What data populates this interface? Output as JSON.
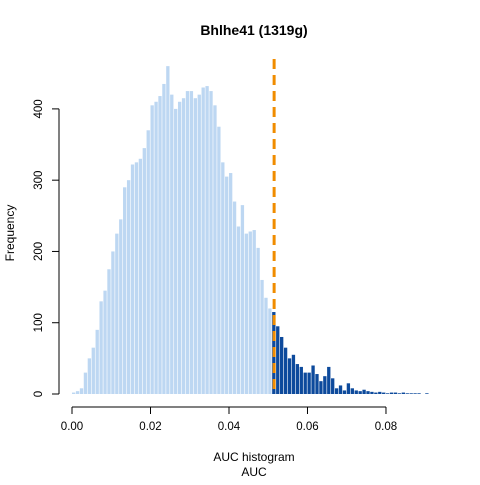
{
  "chart_data": {
    "type": "histogram",
    "title": "Bhlhe41 (1319g)",
    "xlabel_line1": "AUC histogram",
    "xlabel_line2": "AUC",
    "ylabel": "Frequency",
    "xlim": [
      0,
      0.093
    ],
    "ylim": [
      0,
      470
    ],
    "x_ticks": [
      0.0,
      0.02,
      0.04,
      0.06,
      0.08
    ],
    "x_tick_labels": [
      "0.00",
      "0.02",
      "0.04",
      "0.06",
      "0.08"
    ],
    "y_ticks": [
      0,
      100,
      200,
      300,
      400
    ],
    "y_tick_labels": [
      "0",
      "100",
      "200",
      "300",
      "400"
    ],
    "bin_width": 0.001,
    "bin_start": 0.0,
    "counts": [
      2,
      4,
      8,
      30,
      50,
      65,
      90,
      130,
      145,
      175,
      200,
      225,
      245,
      290,
      300,
      322,
      325,
      330,
      345,
      370,
      405,
      410,
      418,
      435,
      460,
      420,
      400,
      410,
      415,
      425,
      425,
      415,
      420,
      430,
      432,
      425,
      405,
      375,
      325,
      305,
      310,
      270,
      235,
      265,
      225,
      228,
      230,
      205,
      160,
      135,
      120,
      115,
      95,
      80,
      65,
      50,
      55,
      42,
      38,
      30,
      30,
      40,
      28,
      18,
      25,
      38,
      22,
      8,
      12,
      5,
      15,
      8,
      5,
      4,
      6,
      4,
      3,
      2,
      3,
      2,
      1,
      2,
      2,
      1,
      2,
      1,
      1,
      1,
      1,
      0,
      1,
      0,
      0
    ],
    "threshold": 0.0515,
    "colors": {
      "below_threshold": "#bdd7f2",
      "above_threshold": "#0d4a9c",
      "threshold_line": "#f08c00"
    }
  }
}
